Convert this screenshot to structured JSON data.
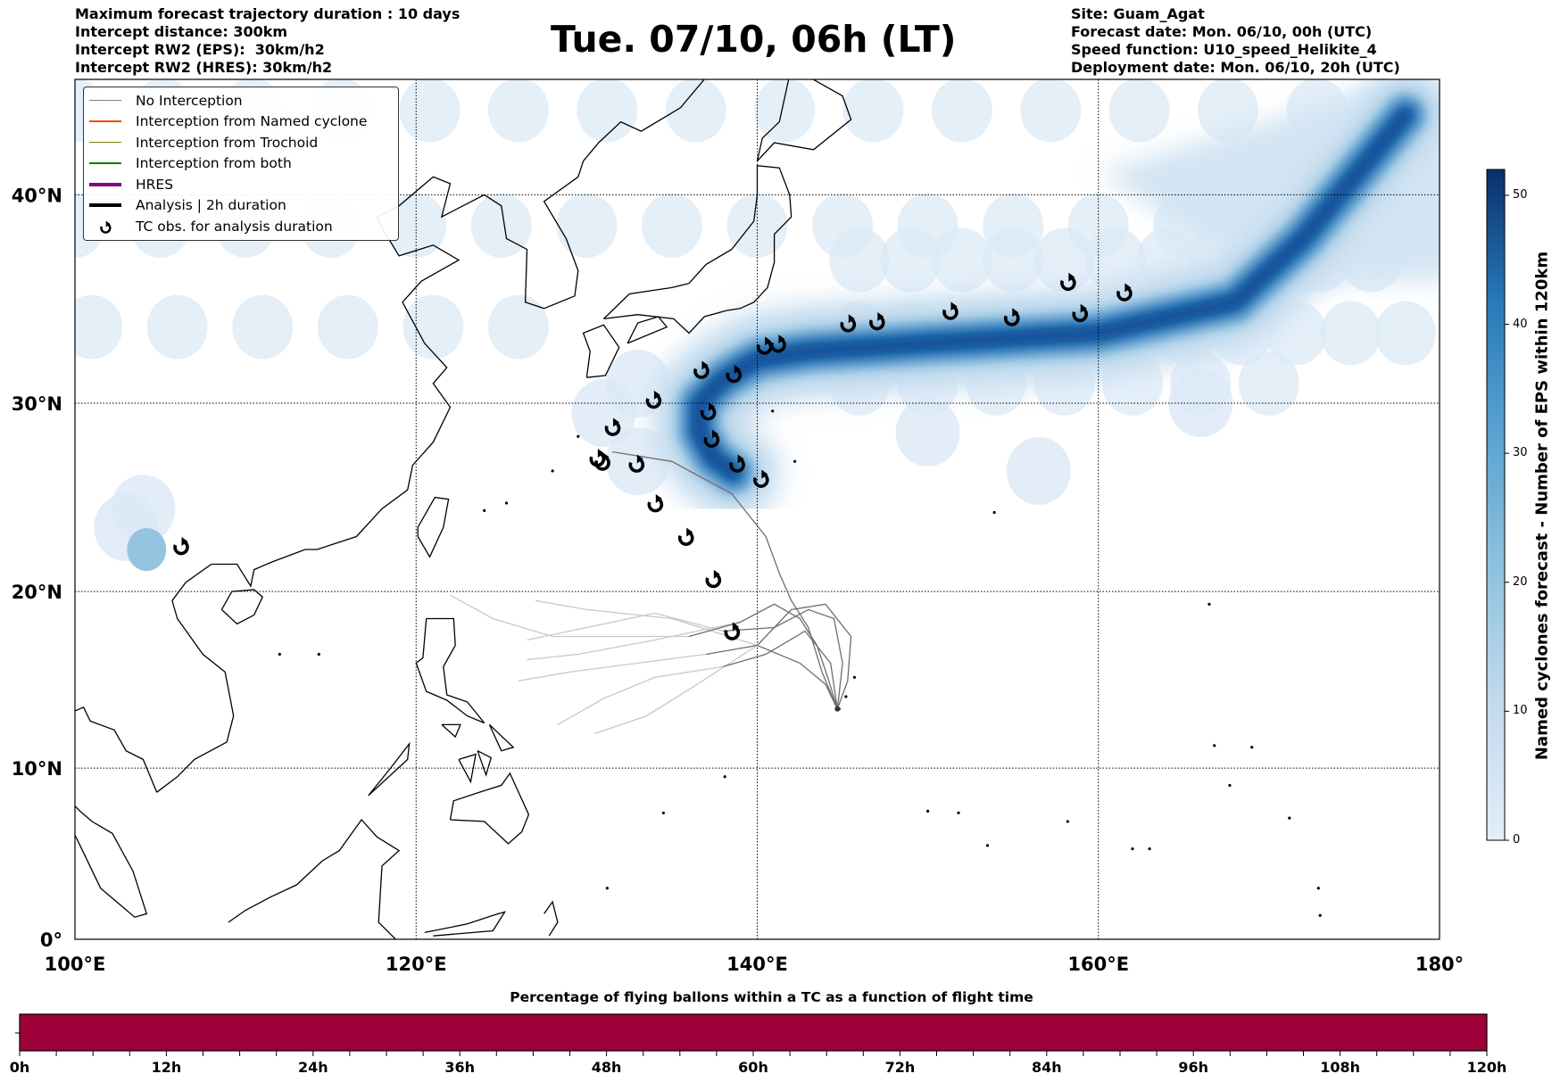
{
  "header": {
    "left_lines": [
      "Maximum forecast trajectory duration : 10 days",
      "Intercept distance: 300km",
      "Intercept RW2 (EPS):  30km/h2",
      "Intercept RW2 (HRES): 30km/h2"
    ],
    "title": "Tue. 07/10, 06h (LT)",
    "right_lines": [
      "Site: Guam_Agat",
      "Forecast date: Mon. 06/10, 00h (UTC)",
      "Speed function: U10_speed_Helikite_4",
      "Deployment date: Mon. 06/10, 20h (UTC)"
    ]
  },
  "legend": [
    {
      "label": "No Interception",
      "color": "#808080",
      "kind": "thin"
    },
    {
      "label": "Interception from Named cyclone",
      "color": "#ff4500",
      "kind": "thin"
    },
    {
      "label": "Interception from Trochoid",
      "color": "#808000",
      "kind": "thin"
    },
    {
      "label": "Interception from both",
      "color": "#008000",
      "kind": "thin"
    },
    {
      "label": "HRES",
      "color": "#800080",
      "kind": "thick"
    },
    {
      "label": "Analysis | 2h duration",
      "color": "#000000",
      "kind": "thick"
    },
    {
      "label": "TC obs. for analysis duration",
      "color": "#000000",
      "kind": "symbol"
    }
  ],
  "chart_data": {
    "type": "map",
    "lon_ticks": [
      "100°E",
      "120°E",
      "140°E",
      "160°E",
      "180°"
    ],
    "lon_values": [
      100,
      120,
      140,
      160,
      180
    ],
    "lat_ticks": [
      "0°",
      "10°N",
      "20°N",
      "30°N",
      "40°N"
    ],
    "lat_values": [
      0,
      10,
      20,
      30,
      40
    ],
    "site": {
      "lon": 144.7,
      "lat": 13.4
    },
    "tc_obs": [
      [
        106.2,
        22.4
      ],
      [
        130.6,
        27.1
      ],
      [
        130.9,
        26.9
      ],
      [
        131.5,
        28.7
      ],
      [
        132.9,
        26.8
      ],
      [
        133.9,
        30.1
      ],
      [
        134.0,
        24.7
      ],
      [
        135.8,
        22.9
      ],
      [
        136.7,
        31.6
      ],
      [
        137.1,
        29.5
      ],
      [
        137.3,
        28.1
      ],
      [
        137.4,
        20.6
      ],
      [
        138.5,
        17.7
      ],
      [
        138.6,
        31.4
      ],
      [
        138.8,
        26.8
      ],
      [
        140.2,
        26.0
      ],
      [
        140.4,
        32.8
      ],
      [
        141.2,
        32.9
      ],
      [
        145.3,
        33.9
      ],
      [
        147.0,
        34.0
      ],
      [
        151.3,
        34.5
      ],
      [
        154.9,
        34.2
      ],
      [
        158.2,
        35.9
      ],
      [
        158.9,
        34.4
      ],
      [
        161.5,
        35.4
      ]
    ],
    "density_track": [
      [
        178,
        43.5
      ],
      [
        172,
        38
      ],
      [
        168,
        35
      ],
      [
        160,
        33.5
      ],
      [
        150,
        33
      ],
      [
        143,
        32.6
      ],
      [
        140,
        32.2
      ],
      [
        138,
        31.2
      ],
      [
        136.6,
        30
      ],
      [
        136.6,
        28.5
      ],
      [
        137.4,
        27.2
      ],
      [
        138.6,
        26.4
      ]
    ],
    "density_spot": [
      104.2,
      22.3
    ],
    "trajectories_dark": [
      [
        [
          144.7,
          13.4
        ],
        [
          144.2,
          15
        ],
        [
          143.5,
          17
        ],
        [
          142.5,
          18.5
        ],
        [
          141,
          19.3
        ],
        [
          139,
          18.3
        ],
        [
          136,
          17.5
        ]
      ],
      [
        [
          144.7,
          13.4
        ],
        [
          145.3,
          15
        ],
        [
          145.5,
          17.5
        ],
        [
          144,
          19.3
        ],
        [
          142,
          19
        ],
        [
          140,
          17
        ]
      ],
      [
        [
          144.7,
          13.4
        ],
        [
          143.8,
          15.5
        ],
        [
          143,
          18
        ],
        [
          142,
          19.5
        ],
        [
          141.3,
          21
        ],
        [
          140.5,
          23
        ],
        [
          138.5,
          25.3
        ],
        [
          135,
          27
        ],
        [
          131.5,
          27.5
        ]
      ],
      [
        [
          144.7,
          13.4
        ],
        [
          144,
          14.8
        ],
        [
          142.5,
          16
        ],
        [
          140,
          17
        ],
        [
          137,
          16.5
        ]
      ],
      [
        [
          144.7,
          13.4
        ],
        [
          145,
          16
        ],
        [
          144.5,
          18.5
        ],
        [
          143,
          19
        ],
        [
          141,
          18
        ],
        [
          138,
          17.8
        ]
      ],
      [
        [
          144.7,
          13.4
        ],
        [
          144.3,
          16
        ],
        [
          142.8,
          17.8
        ],
        [
          140.5,
          16.5
        ],
        [
          138,
          15.8
        ]
      ]
    ],
    "trajectories_light": [
      [
        [
          136,
          17.5
        ],
        [
          132,
          17.5
        ],
        [
          128,
          17.5
        ],
        [
          124.5,
          18.5
        ],
        [
          122,
          19.8
        ]
      ],
      [
        [
          140,
          17
        ],
        [
          135,
          18.5
        ],
        [
          130,
          19
        ],
        [
          127,
          19.5
        ]
      ],
      [
        [
          137,
          16.5
        ],
        [
          133,
          16
        ],
        [
          129,
          15.5
        ],
        [
          126,
          15
        ]
      ],
      [
        [
          138,
          17.8
        ],
        [
          134,
          18.8
        ],
        [
          130,
          18
        ],
        [
          126.5,
          17.3
        ]
      ],
      [
        [
          138,
          15.8
        ],
        [
          134,
          15.2
        ],
        [
          131,
          14
        ],
        [
          128.3,
          12.5
        ]
      ],
      [
        [
          140,
          17
        ],
        [
          136,
          14.5
        ],
        [
          133.5,
          13
        ],
        [
          130.5,
          12
        ]
      ],
      [
        [
          139,
          18.3
        ],
        [
          134,
          17.3
        ],
        [
          129.5,
          16.5
        ],
        [
          126.5,
          16.2
        ]
      ]
    ],
    "colorbar": {
      "label": "Named cyclones forecast - Number of EPS within 120km",
      "ticks": [
        "0",
        "10",
        "20",
        "30",
        "40",
        "50"
      ],
      "min": 0,
      "max": 52
    }
  },
  "bottom_bar": {
    "title": "Percentage of flying ballons within a TC as a function of flight time",
    "ticks": [
      "0h",
      "12h",
      "24h",
      "36h",
      "48h",
      "60h",
      "72h",
      "84h",
      "96h",
      "108h",
      "120h"
    ],
    "fill_fraction": 1.0,
    "fill_color": "#9e003a"
  }
}
